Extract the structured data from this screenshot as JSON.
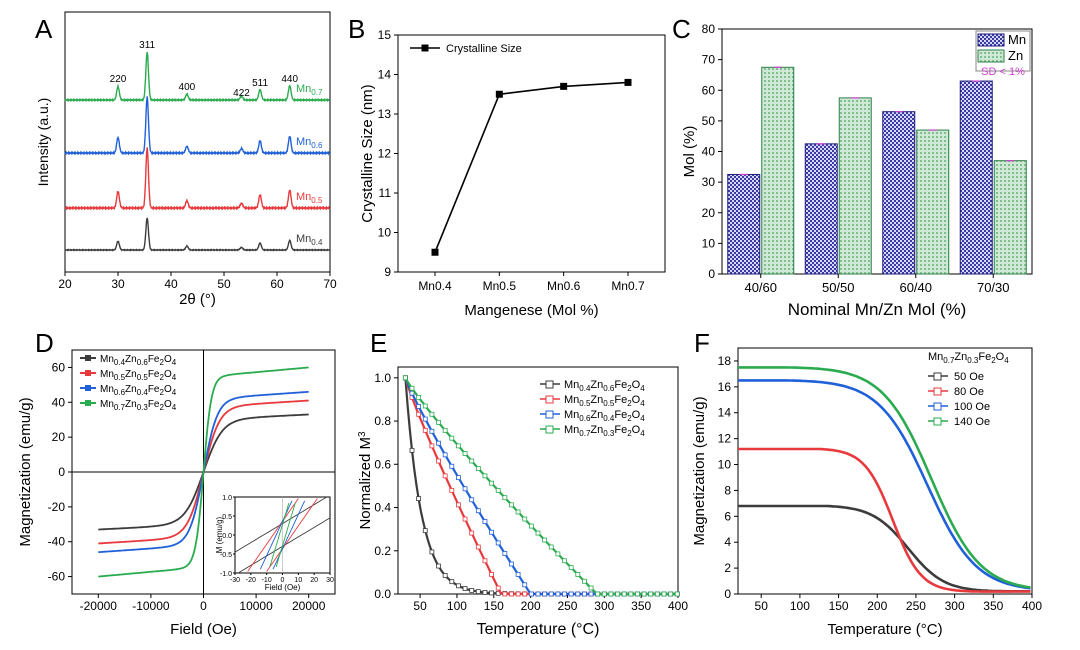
{
  "chart_data": [
    {
      "panel": "A",
      "type": "line",
      "xlabel": "2θ (°)",
      "ylabel": "Intensity (a.u.)",
      "xlim": [
        20,
        70
      ],
      "xticks": [
        20,
        30,
        40,
        50,
        60,
        70
      ],
      "peaks": [
        {
          "label": "220",
          "x": 30.0
        },
        {
          "label": "311",
          "x": 35.5
        },
        {
          "label": "400",
          "x": 43.0
        },
        {
          "label": "422",
          "x": 53.3
        },
        {
          "label": "511",
          "x": 56.8
        },
        {
          "label": "440",
          "x": 62.4
        }
      ],
      "series": [
        {
          "name": "Mn",
          "sub": "0.4",
          "color": "#3c3c3c",
          "offset": 0
        },
        {
          "name": "Mn",
          "sub": "0.5",
          "color": "#e8393c",
          "offset": 1
        },
        {
          "name": "Mn",
          "sub": "0.6",
          "color": "#2060d8",
          "offset": 2
        },
        {
          "name": "Mn",
          "sub": "0.7",
          "color": "#2bab4f",
          "offset": 3
        }
      ]
    },
    {
      "panel": "B",
      "type": "line",
      "xlabel": "Mangenese (Mol %)",
      "ylabel": "Crystalline Size (nm)",
      "ylim": [
        9,
        15
      ],
      "yticks": [
        9,
        10,
        11,
        12,
        13,
        14,
        15
      ],
      "categories": [
        "Mn0.4",
        "Mn0.5",
        "Mn0.6",
        "Mn0.7"
      ],
      "values": [
        9.5,
        13.5,
        13.7,
        13.8
      ],
      "legend": "Crystalline Size"
    },
    {
      "panel": "C",
      "type": "bar",
      "xlabel": "Nominal Mn/Zn Mol (%)",
      "ylabel": "Mol (%)",
      "ylim": [
        0,
        80
      ],
      "yticks": [
        0,
        10,
        20,
        30,
        40,
        50,
        60,
        70,
        80
      ],
      "categories": [
        "40/60",
        "50/50",
        "60/40",
        "70/30"
      ],
      "series": [
        {
          "name": "Mn",
          "values": [
            32.5,
            42.5,
            53,
            63
          ]
        },
        {
          "name": "Zn",
          "values": [
            67.5,
            57.5,
            47,
            37
          ]
        }
      ],
      "annotation": "SD < 1%"
    },
    {
      "panel": "D",
      "type": "line",
      "xlabel": "Field (Oe)",
      "ylabel": "Magnetization (emu/g)",
      "xlim": [
        -25000,
        25000
      ],
      "ylim": [
        -70,
        70
      ],
      "xticks": [
        -20000,
        -10000,
        0,
        10000,
        20000
      ],
      "yticks": [
        -60,
        -40,
        -20,
        0,
        20,
        40,
        60
      ],
      "series": [
        {
          "base": "Mn",
          "s1": "0.4",
          "mid": "Zn",
          "s2": "0.6",
          "tail": "Fe",
          "s3": "2",
          "end": "O",
          "s4": "4",
          "color": "#3c3c3c",
          "ms": 33
        },
        {
          "base": "Mn",
          "s1": "0.5",
          "mid": "Zn",
          "s2": "0.5",
          "tail": "Fe",
          "s3": "2",
          "end": "O",
          "s4": "4",
          "color": "#e8393c",
          "ms": 41
        },
        {
          "base": "Mn",
          "s1": "0.6",
          "mid": "Zn",
          "s2": "0.4",
          "tail": "Fe",
          "s3": "2",
          "end": "O",
          "s4": "4",
          "color": "#2060d8",
          "ms": 46
        },
        {
          "base": "Mn",
          "s1": "0.7",
          "mid": "Zn",
          "s2": "0.3",
          "tail": "Fe",
          "s3": "2",
          "end": "O",
          "s4": "4",
          "color": "#2bab4f",
          "ms": 60
        }
      ],
      "inset": {
        "xlabel": "Field (Oe)",
        "ylabel": "M (emu/g)",
        "xlim": [
          -30,
          30
        ],
        "ylim": [
          -1.0,
          1.0
        ],
        "xticks": [
          -30,
          -20,
          -10,
          0,
          10,
          20,
          30
        ],
        "yticks": [
          -1.0,
          -0.5,
          0.0,
          0.5,
          1.0
        ]
      }
    },
    {
      "panel": "E",
      "type": "line",
      "xlabel": "Temperature (°C)",
      "ylabel": "Normalized M",
      "ylabel_sup": "3",
      "xlim": [
        20,
        400
      ],
      "ylim": [
        0,
        1.05
      ],
      "xticks": [
        50,
        100,
        150,
        200,
        250,
        300,
        350,
        400
      ],
      "yticks": [
        0.0,
        0.2,
        0.4,
        0.6,
        0.8,
        1.0
      ],
      "series": [
        {
          "base": "Mn",
          "s1": "0.4",
          "mid": "Zn",
          "s2": "0.6",
          "tail": "Fe",
          "s3": "2",
          "end": "O",
          "s4": "4",
          "color": "#3c3c3c",
          "tc": 110
        },
        {
          "base": "Mn",
          "s1": "0.5",
          "mid": "Zn",
          "s2": "0.5",
          "tail": "Fe",
          "s3": "2",
          "end": "O",
          "s4": "4",
          "color": "#e8393c",
          "tc": 160
        },
        {
          "base": "Mn",
          "s1": "0.6",
          "mid": "Zn",
          "s2": "0.4",
          "tail": "Fe",
          "s3": "2",
          "end": "O",
          "s4": "4",
          "color": "#2060d8",
          "tc": 200
        },
        {
          "base": "Mn",
          "s1": "0.7",
          "mid": "Zn",
          "s2": "0.3",
          "tail": "Fe",
          "s3": "2",
          "end": "O",
          "s4": "4",
          "color": "#2bab4f",
          "tc": 290
        }
      ]
    },
    {
      "panel": "F",
      "type": "line",
      "xlabel": "Temperature (°C)",
      "ylabel": "Magnetization (emu/g)",
      "xlim": [
        20,
        400
      ],
      "ylim": [
        0,
        19
      ],
      "xticks": [
        50,
        100,
        150,
        200,
        250,
        300,
        350,
        400
      ],
      "yticks": [
        0,
        2,
        4,
        6,
        8,
        10,
        12,
        14,
        16,
        18
      ],
      "legend_title": {
        "base": "Mn",
        "s1": "0.7",
        "mid": "Zn",
        "s2": "0.3",
        "tail": "Fe",
        "s3": "2",
        "end": "O",
        "s4": "4"
      },
      "series": [
        {
          "name": "50 Oe",
          "color": "#3c3c3c",
          "m0": 6.8,
          "tc": 240
        },
        {
          "name": "80 Oe",
          "color": "#e8393c",
          "m0": 11.2,
          "tc": 220
        },
        {
          "name": "100 Oe",
          "color": "#2060d8",
          "m0": 16.5,
          "tc": 265
        },
        {
          "name": "140 Oe",
          "color": "#2bab4f",
          "m0": 17.5,
          "tc": 270
        }
      ]
    }
  ]
}
